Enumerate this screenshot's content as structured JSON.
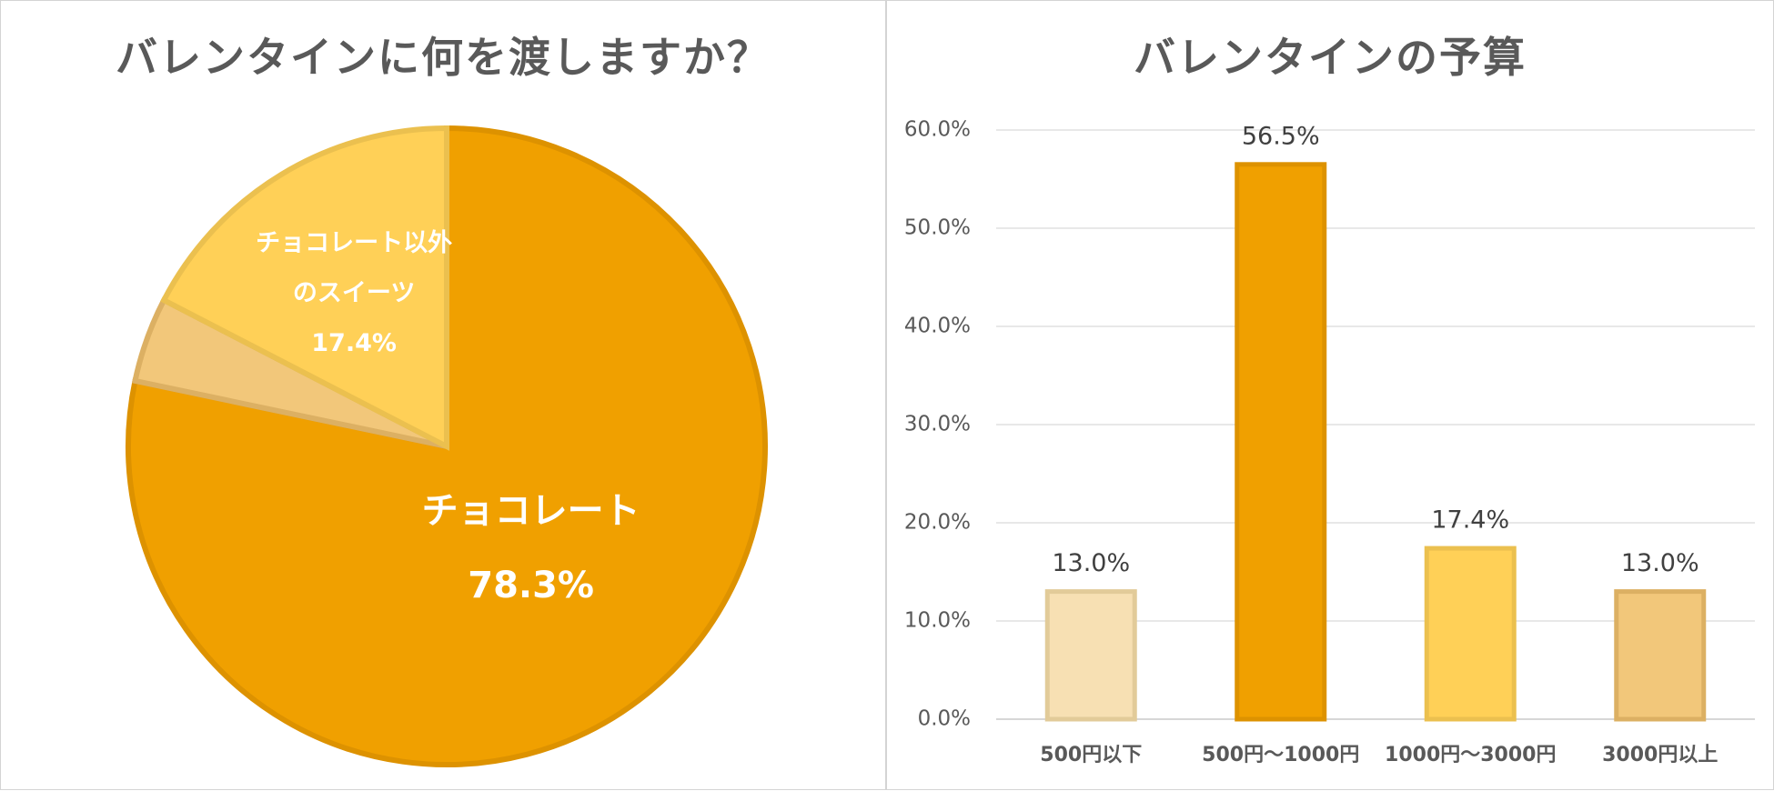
{
  "chart_data": [
    {
      "type": "pie",
      "title": "バレンタインに何を渡しますか？",
      "slices": [
        {
          "label_lines": [
            "チョコレート"
          ],
          "value": 78.3,
          "value_label": "78.3%",
          "color": "#f0a000",
          "stroke": "#dd9200",
          "text_color": "#ffffff"
        },
        {
          "label_lines": [],
          "value": 4.3,
          "value_label": "",
          "color": "#f2c77a",
          "stroke": "#dcb063",
          "text_color": "#ffffff"
        },
        {
          "label_lines": [
            "チョコレート以外",
            "のスイーツ"
          ],
          "value": 17.4,
          "value_label": "17.4%",
          "color": "#ffd057",
          "stroke": "#ebc04f",
          "text_color": "#ffffff"
        }
      ]
    },
    {
      "type": "bar",
      "title": "バレンタインの予算",
      "categories": [
        "500円以下",
        "500円～1000円",
        "1000円～3000円",
        "3000円以上"
      ],
      "values": [
        13.0,
        56.5,
        17.4,
        13.0
      ],
      "value_labels": [
        "13.0%",
        "56.5%",
        "17.4%",
        "13.0%"
      ],
      "colors": [
        "#f7e0b3",
        "#f0a000",
        "#ffd057",
        "#f2c77a"
      ],
      "strokes": [
        "#e2cb99",
        "#dd9200",
        "#ebc04f",
        "#dcb063"
      ],
      "ylim": [
        0,
        60
      ],
      "yticks": [
        0,
        10,
        20,
        30,
        40,
        50,
        60
      ],
      "ytick_labels": [
        "0.0%",
        "10.0%",
        "20.0%",
        "30.0%",
        "40.0%",
        "50.0%",
        "60.0%"
      ],
      "grid": true
    }
  ]
}
